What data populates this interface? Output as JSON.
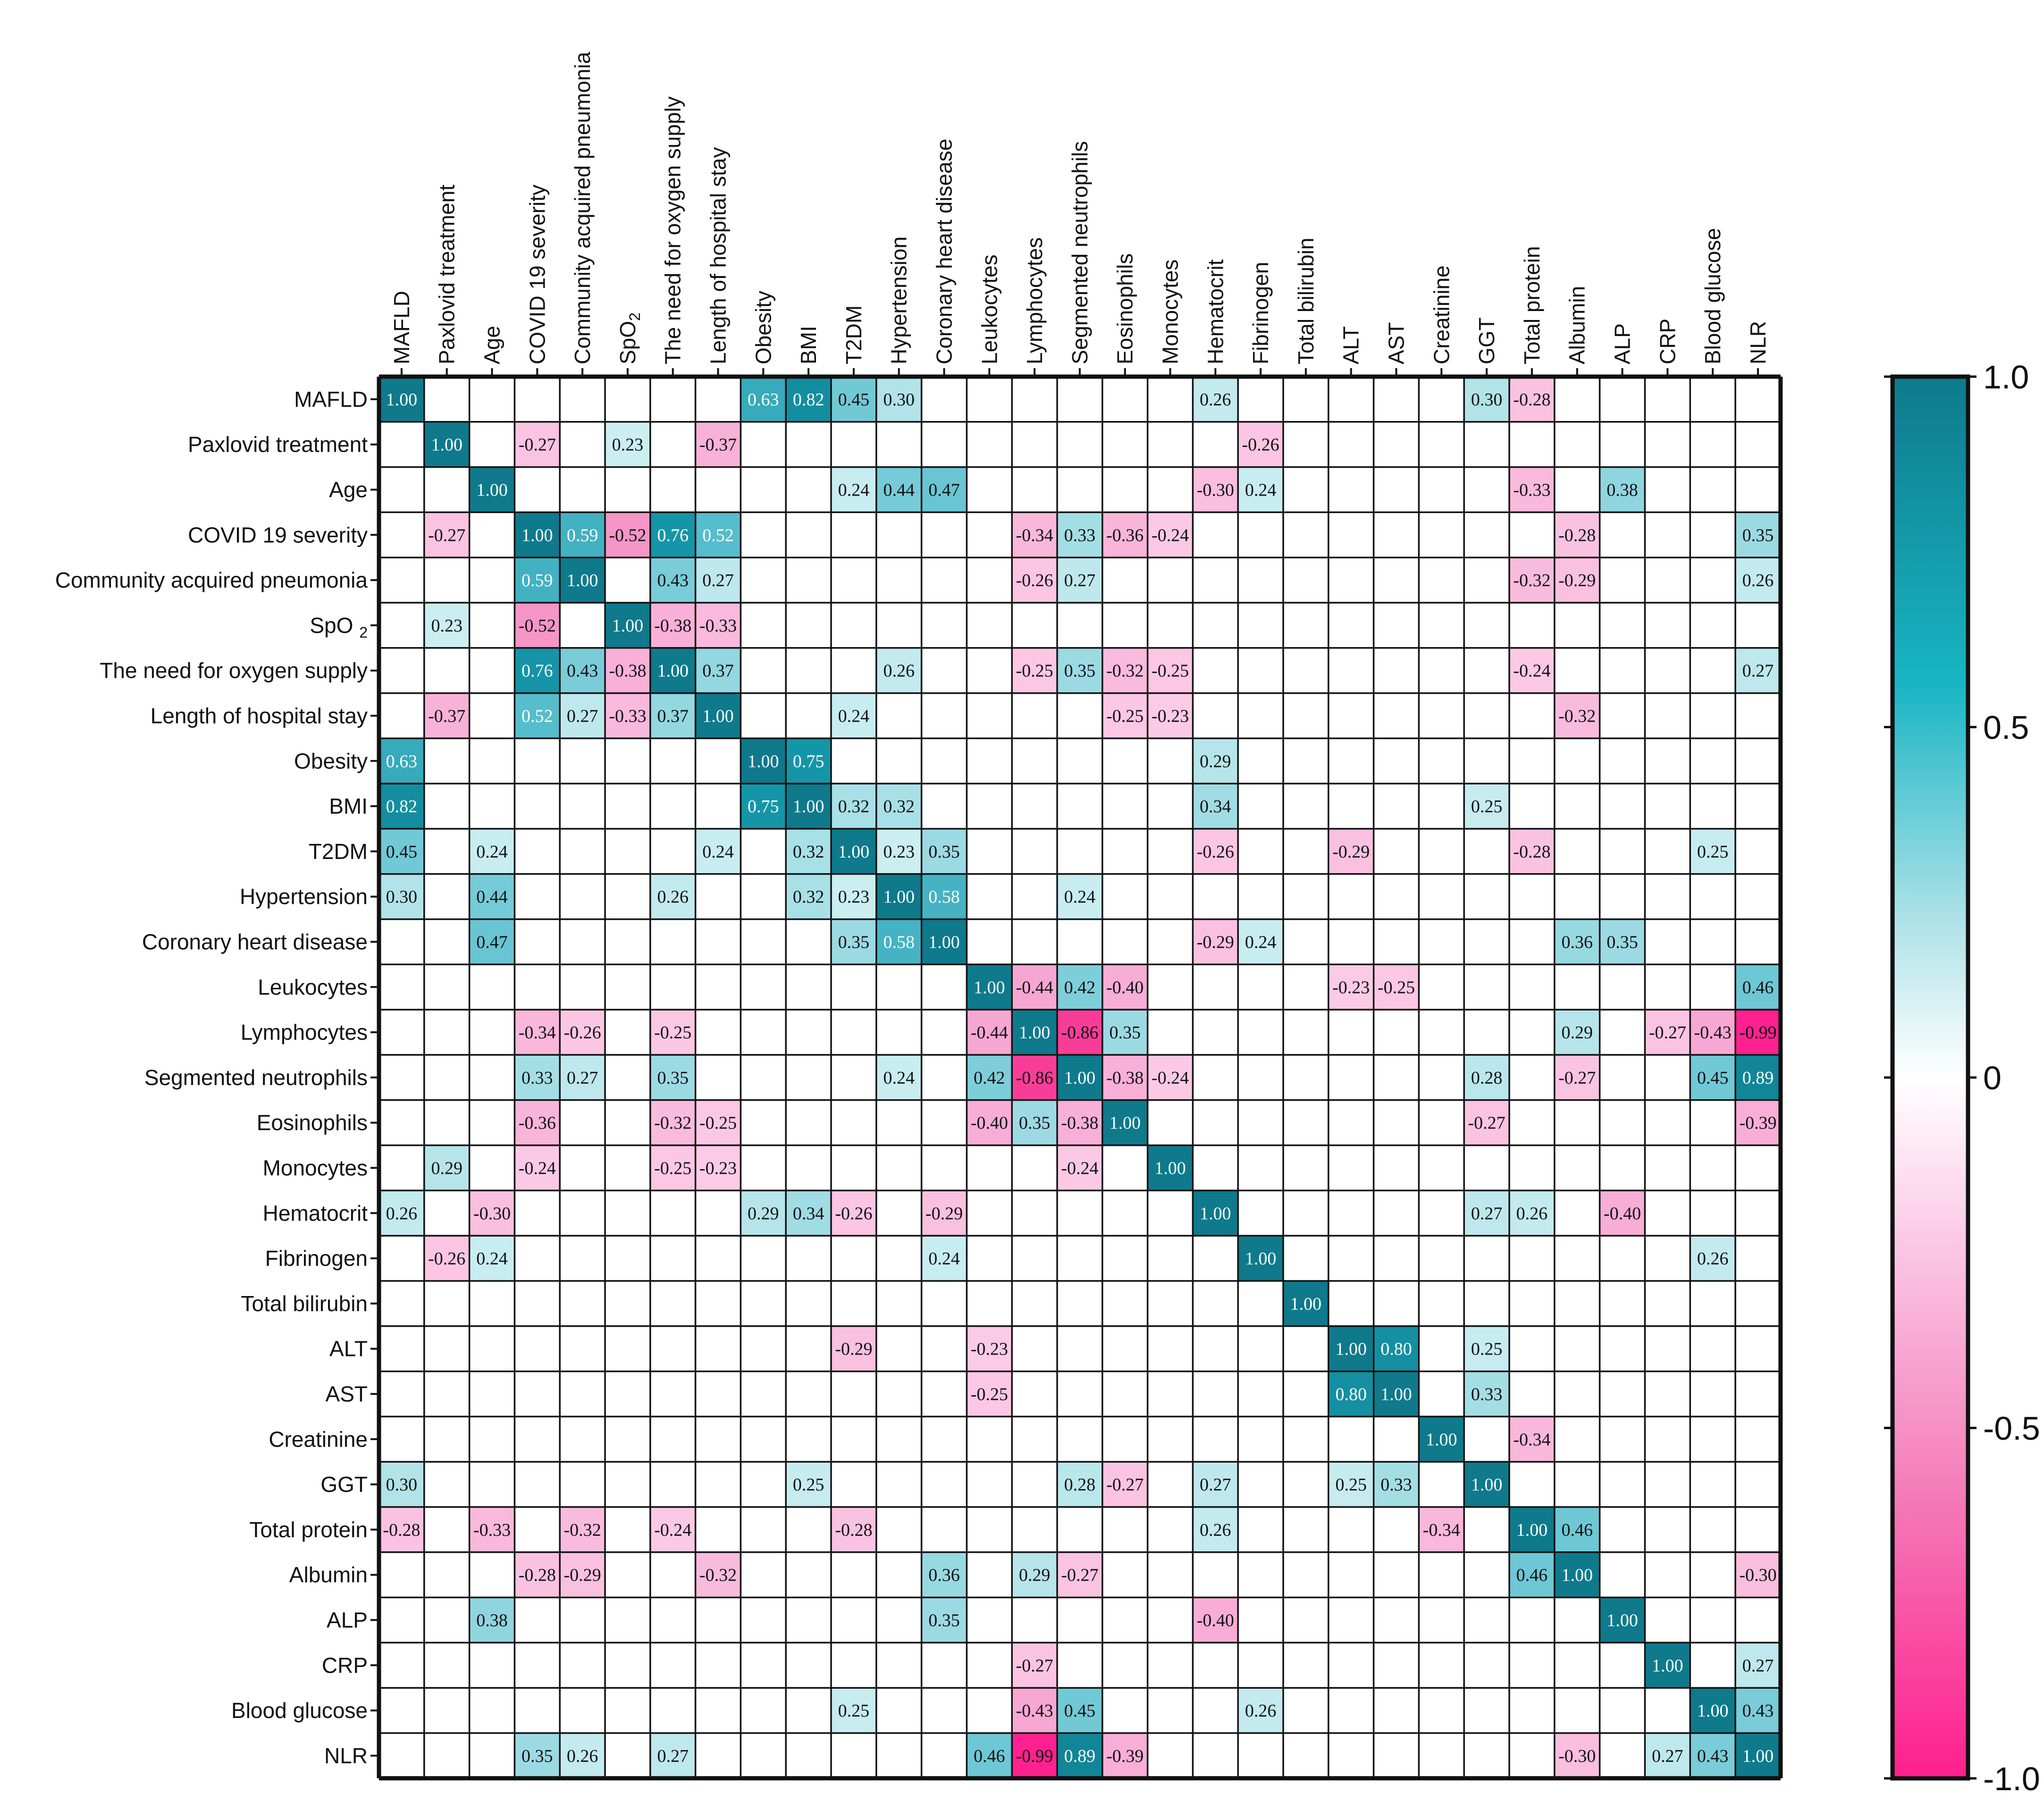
{
  "chart_data": {
    "type": "heatmap",
    "title": "",
    "variables": [
      "MAFLD",
      "Paxlovid treatment",
      "Age",
      "COVID 19 severity",
      "Community acquired pneumonia",
      "SpO2",
      "The need for oxygen supply",
      "Length of hospital stay",
      "Obesity",
      "BMI",
      "T2DM",
      "Hypertension",
      "Coronary heart disease",
      "Leukocytes",
      "Lymphocytes",
      "Segmented neutrophils",
      "Eosinophils",
      "Monocytes",
      "Hematocrit",
      "Fibrinogen",
      "Total bilirubin",
      "ALT",
      "AST",
      "Creatinine",
      "GGT",
      "Total protein",
      "Albumin",
      "ALP",
      "CRP",
      "Blood glucose",
      "NLR"
    ],
    "row_labels": [
      "MAFLD",
      "Paxlovid treatment",
      "Age",
      "COVID 19 severity",
      "Community acquired pneumonia",
      "SpO 2",
      "The need for oxygen supply",
      "Length of hospital stay",
      "Obesity",
      "BMI",
      "T2DM",
      "Hypertension",
      "Coronary heart disease",
      "Leukocytes",
      "Lymphocytes",
      "Segmented neutrophils",
      "Eosinophils",
      "Monocytes",
      "Hematocrit",
      "Fibrinogen",
      "Total bilirubin",
      "ALT",
      "AST",
      "Creatinine",
      "GGT",
      "Total protein",
      "Albumin",
      "ALP",
      "CRP",
      "Blood glucose",
      "NLR"
    ],
    "col_labels": [
      "MAFLD",
      "Paxlovid treatment",
      "Age",
      "COVID 19 severity",
      "Community acquired pneumonia",
      "SpO2",
      "The need for oxygen supply",
      "Length of hospital stay",
      "Obesity",
      "BMI",
      "T2DM",
      "Hypertension",
      "Coronary heart disease",
      "Leukocytes",
      "Lymphocytes",
      "Segmented neutrophils",
      "Eosinophils",
      "Monocytes",
      "Hematocrit",
      "Fibrinogen",
      "Total bilirubin",
      "ALT",
      "AST",
      "Creatinine",
      "GGT",
      "Total protein",
      "Albumin",
      "ALP",
      "CRP",
      "Blood glucose",
      "NLR"
    ],
    "matrix": [
      [
        1.0,
        null,
        null,
        null,
        null,
        null,
        null,
        null,
        0.63,
        0.82,
        0.45,
        0.3,
        null,
        null,
        null,
        null,
        null,
        null,
        0.26,
        null,
        null,
        null,
        null,
        null,
        0.3,
        -0.28,
        null,
        null,
        null,
        null,
        null
      ],
      [
        null,
        1.0,
        null,
        -0.27,
        null,
        0.23,
        null,
        -0.37,
        null,
        null,
        null,
        null,
        null,
        null,
        null,
        null,
        null,
        null,
        null,
        -0.26,
        null,
        null,
        null,
        null,
        null,
        null,
        null,
        null,
        null,
        null,
        null
      ],
      [
        null,
        null,
        1.0,
        null,
        null,
        null,
        null,
        null,
        null,
        null,
        0.24,
        0.44,
        0.47,
        null,
        null,
        null,
        null,
        null,
        -0.3,
        0.24,
        null,
        null,
        null,
        null,
        null,
        -0.33,
        null,
        0.38,
        null,
        null,
        null
      ],
      [
        null,
        -0.27,
        null,
        1.0,
        0.59,
        -0.52,
        0.76,
        0.52,
        null,
        null,
        null,
        null,
        null,
        null,
        -0.34,
        0.33,
        -0.36,
        -0.24,
        null,
        null,
        null,
        null,
        null,
        null,
        null,
        null,
        -0.28,
        null,
        null,
        null,
        0.35
      ],
      [
        null,
        null,
        null,
        0.59,
        1.0,
        null,
        0.43,
        0.27,
        null,
        null,
        null,
        null,
        null,
        null,
        -0.26,
        0.27,
        null,
        null,
        null,
        null,
        null,
        null,
        null,
        null,
        null,
        -0.32,
        -0.29,
        null,
        null,
        null,
        0.26
      ],
      [
        null,
        0.23,
        null,
        -0.52,
        null,
        1.0,
        -0.38,
        -0.33,
        null,
        null,
        null,
        null,
        null,
        null,
        null,
        null,
        null,
        null,
        null,
        null,
        null,
        null,
        null,
        null,
        null,
        null,
        null,
        null,
        null,
        null,
        null
      ],
      [
        null,
        null,
        null,
        0.76,
        0.43,
        -0.38,
        1.0,
        0.37,
        null,
        null,
        null,
        0.26,
        null,
        null,
        -0.25,
        0.35,
        -0.32,
        -0.25,
        null,
        null,
        null,
        null,
        null,
        null,
        null,
        -0.24,
        null,
        null,
        null,
        null,
        0.27
      ],
      [
        null,
        -0.37,
        null,
        0.52,
        0.27,
        -0.33,
        0.37,
        1.0,
        null,
        null,
        0.24,
        null,
        null,
        null,
        null,
        null,
        -0.25,
        -0.23,
        null,
        null,
        null,
        null,
        null,
        null,
        null,
        null,
        -0.32,
        null,
        null,
        null,
        null
      ],
      [
        0.63,
        null,
        null,
        null,
        null,
        null,
        null,
        null,
        1.0,
        0.75,
        null,
        null,
        null,
        null,
        null,
        null,
        null,
        null,
        0.29,
        null,
        null,
        null,
        null,
        null,
        null,
        null,
        null,
        null,
        null,
        null,
        null
      ],
      [
        0.82,
        null,
        null,
        null,
        null,
        null,
        null,
        null,
        0.75,
        1.0,
        0.32,
        0.32,
        null,
        null,
        null,
        null,
        null,
        null,
        0.34,
        null,
        null,
        null,
        null,
        null,
        0.25,
        null,
        null,
        null,
        null,
        null,
        null
      ],
      [
        0.45,
        null,
        0.24,
        null,
        null,
        null,
        null,
        0.24,
        null,
        0.32,
        1.0,
        0.23,
        0.35,
        null,
        null,
        null,
        null,
        null,
        -0.26,
        null,
        null,
        -0.29,
        null,
        null,
        null,
        -0.28,
        null,
        null,
        null,
        0.25,
        null
      ],
      [
        0.3,
        null,
        0.44,
        null,
        null,
        null,
        0.26,
        null,
        null,
        0.32,
        0.23,
        1.0,
        0.58,
        null,
        null,
        0.24,
        null,
        null,
        null,
        null,
        null,
        null,
        null,
        null,
        null,
        null,
        null,
        null,
        null,
        null,
        null
      ],
      [
        null,
        null,
        0.47,
        null,
        null,
        null,
        null,
        null,
        null,
        null,
        0.35,
        0.58,
        1.0,
        null,
        null,
        null,
        null,
        null,
        -0.29,
        0.24,
        null,
        null,
        null,
        null,
        null,
        null,
        0.36,
        0.35,
        null,
        null,
        null
      ],
      [
        null,
        null,
        null,
        null,
        null,
        null,
        null,
        null,
        null,
        null,
        null,
        null,
        null,
        1.0,
        -0.44,
        0.42,
        -0.4,
        null,
        null,
        null,
        null,
        -0.23,
        -0.25,
        null,
        null,
        null,
        null,
        null,
        null,
        null,
        0.46
      ],
      [
        null,
        null,
        null,
        -0.34,
        -0.26,
        null,
        -0.25,
        null,
        null,
        null,
        null,
        null,
        null,
        -0.44,
        1.0,
        -0.86,
        0.35,
        null,
        null,
        null,
        null,
        null,
        null,
        null,
        null,
        null,
        0.29,
        null,
        -0.27,
        -0.43,
        -0.99
      ],
      [
        null,
        null,
        null,
        0.33,
        0.27,
        null,
        0.35,
        null,
        null,
        null,
        null,
        0.24,
        null,
        0.42,
        -0.86,
        1.0,
        -0.38,
        -0.24,
        null,
        null,
        null,
        null,
        null,
        null,
        0.28,
        null,
        -0.27,
        null,
        null,
        0.45,
        0.89
      ],
      [
        null,
        null,
        null,
        -0.36,
        null,
        null,
        -0.32,
        -0.25,
        null,
        null,
        null,
        null,
        null,
        -0.4,
        0.35,
        -0.38,
        1.0,
        null,
        null,
        null,
        null,
        null,
        null,
        null,
        -0.27,
        null,
        null,
        null,
        null,
        null,
        -0.39
      ],
      [
        null,
        0.29,
        null,
        -0.24,
        null,
        null,
        -0.25,
        -0.23,
        null,
        null,
        null,
        null,
        null,
        null,
        null,
        -0.24,
        null,
        1.0,
        null,
        null,
        null,
        null,
        null,
        null,
        null,
        null,
        null,
        null,
        null,
        null,
        null
      ],
      [
        0.26,
        null,
        -0.3,
        null,
        null,
        null,
        null,
        null,
        0.29,
        0.34,
        -0.26,
        null,
        -0.29,
        null,
        null,
        null,
        null,
        null,
        1.0,
        null,
        null,
        null,
        null,
        null,
        0.27,
        0.26,
        null,
        -0.4,
        null,
        null,
        null
      ],
      [
        null,
        -0.26,
        0.24,
        null,
        null,
        null,
        null,
        null,
        null,
        null,
        null,
        null,
        0.24,
        null,
        null,
        null,
        null,
        null,
        null,
        1.0,
        null,
        null,
        null,
        null,
        null,
        null,
        null,
        null,
        null,
        0.26,
        null
      ],
      [
        null,
        null,
        null,
        null,
        null,
        null,
        null,
        null,
        null,
        null,
        null,
        null,
        null,
        null,
        null,
        null,
        null,
        null,
        null,
        null,
        1.0,
        null,
        null,
        null,
        null,
        null,
        null,
        null,
        null,
        null,
        null
      ],
      [
        null,
        null,
        null,
        null,
        null,
        null,
        null,
        null,
        null,
        null,
        -0.29,
        null,
        null,
        -0.23,
        null,
        null,
        null,
        null,
        null,
        null,
        null,
        1.0,
        0.8,
        null,
        0.25,
        null,
        null,
        null,
        null,
        null,
        null
      ],
      [
        null,
        null,
        null,
        null,
        null,
        null,
        null,
        null,
        null,
        null,
        null,
        null,
        null,
        -0.25,
        null,
        null,
        null,
        null,
        null,
        null,
        null,
        0.8,
        1.0,
        null,
        0.33,
        null,
        null,
        null,
        null,
        null,
        null
      ],
      [
        null,
        null,
        null,
        null,
        null,
        null,
        null,
        null,
        null,
        null,
        null,
        null,
        null,
        null,
        null,
        null,
        null,
        null,
        null,
        null,
        null,
        null,
        null,
        1.0,
        null,
        -0.34,
        null,
        null,
        null,
        null,
        null
      ],
      [
        0.3,
        null,
        null,
        null,
        null,
        null,
        null,
        null,
        null,
        0.25,
        null,
        null,
        null,
        null,
        null,
        0.28,
        -0.27,
        null,
        0.27,
        null,
        null,
        0.25,
        0.33,
        null,
        1.0,
        null,
        null,
        null,
        null,
        null,
        null
      ],
      [
        -0.28,
        null,
        -0.33,
        null,
        -0.32,
        null,
        -0.24,
        null,
        null,
        null,
        -0.28,
        null,
        null,
        null,
        null,
        null,
        null,
        null,
        0.26,
        null,
        null,
        null,
        null,
        -0.34,
        null,
        1.0,
        0.46,
        null,
        null,
        null,
        null
      ],
      [
        null,
        null,
        null,
        -0.28,
        -0.29,
        null,
        null,
        -0.32,
        null,
        null,
        null,
        null,
        0.36,
        null,
        0.29,
        -0.27,
        null,
        null,
        null,
        null,
        null,
        null,
        null,
        null,
        null,
        0.46,
        1.0,
        null,
        null,
        null,
        -0.3
      ],
      [
        null,
        null,
        0.38,
        null,
        null,
        null,
        null,
        null,
        null,
        null,
        null,
        null,
        0.35,
        null,
        null,
        null,
        null,
        null,
        -0.4,
        null,
        null,
        null,
        null,
        null,
        null,
        null,
        null,
        1.0,
        null,
        null,
        null
      ],
      [
        null,
        null,
        null,
        null,
        null,
        null,
        null,
        null,
        null,
        null,
        null,
        null,
        null,
        null,
        -0.27,
        null,
        null,
        null,
        null,
        null,
        null,
        null,
        null,
        null,
        null,
        null,
        null,
        null,
        1.0,
        null,
        0.27
      ],
      [
        null,
        null,
        null,
        null,
        null,
        null,
        null,
        null,
        null,
        null,
        0.25,
        null,
        null,
        null,
        -0.43,
        0.45,
        null,
        null,
        null,
        0.26,
        null,
        null,
        null,
        null,
        null,
        null,
        null,
        null,
        null,
        1.0,
        0.43
      ],
      [
        null,
        null,
        null,
        0.35,
        0.26,
        null,
        0.27,
        null,
        null,
        null,
        null,
        null,
        null,
        0.46,
        -0.99,
        0.89,
        -0.39,
        null,
        null,
        null,
        null,
        null,
        null,
        null,
        null,
        null,
        -0.3,
        null,
        0.27,
        0.43,
        1.0
      ]
    ],
    "value_range": [
      -1.0,
      1.0
    ],
    "colorbar": {
      "ticks": [
        1.0,
        0.5,
        0,
        -0.5,
        -1.0
      ],
      "tick_labels": [
        "1.0",
        "0.5",
        "0",
        "-0.5",
        "-1.0"
      ],
      "colors": {
        "positive": "#0e7a8c",
        "mid_positive": "#19b5c4",
        "light_positive": "#c6ecf0",
        "zero": "#ffffff",
        "light_negative": "#fbc7e4",
        "mid_negative": "#f47ab8",
        "negative": "#ff1f8e"
      }
    },
    "grid": true,
    "legend": "right"
  }
}
